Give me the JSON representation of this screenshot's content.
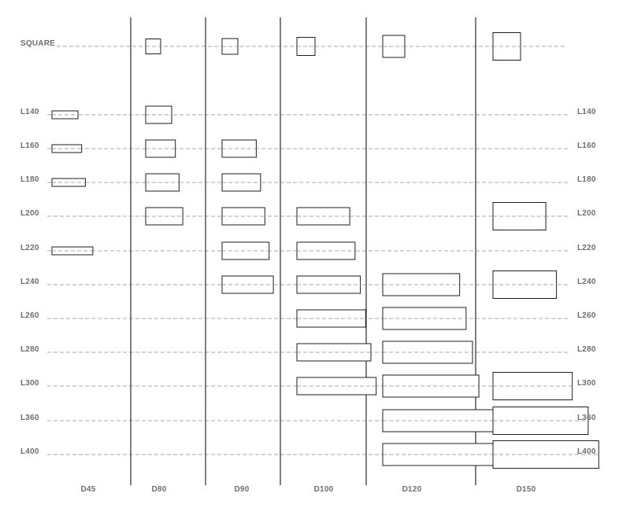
{
  "rows": [
    "SQUARE",
    "L140",
    "L160",
    "L180",
    "L200",
    "L220",
    "L240",
    "L260",
    "L280",
    "L300",
    "L360",
    "L400"
  ],
  "columns": [
    "D45",
    "D80",
    "D90",
    "D100",
    "D120",
    "D150"
  ],
  "availability": {
    "D45": [
      "L140",
      "L160",
      "L180",
      "L220"
    ],
    "D80": [
      "SQUARE",
      "L140",
      "L160",
      "L180",
      "L200"
    ],
    "D90": [
      "SQUARE",
      "L160",
      "L180",
      "L200",
      "L220",
      "L240"
    ],
    "D100": [
      "SQUARE",
      "L200",
      "L220",
      "L240",
      "L260",
      "L280",
      "L300"
    ],
    "D120": [
      "SQUARE",
      "L240",
      "L260",
      "L280",
      "L300",
      "L360",
      "L400"
    ],
    "D150": [
      "SQUARE",
      "L200",
      "L240",
      "L300",
      "L360",
      "L400"
    ]
  }
}
